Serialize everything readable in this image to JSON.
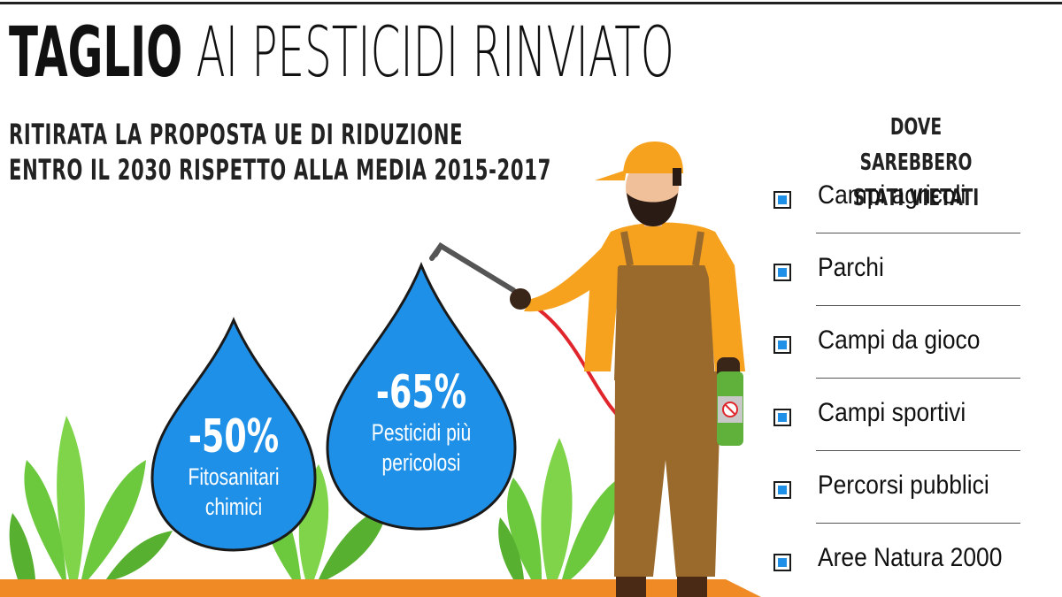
{
  "header": {
    "title_bold": "TAGLIO",
    "title_rest": "AI PESTICIDI RINVIATO",
    "subtitle_line1": "RITIRATA LA PROPOSTA UE DI RIDUZIONE",
    "subtitle_line2": "ENTRO IL 2030 RISPETTO ALLA MEDIA 2015-2017"
  },
  "drops": [
    {
      "value": "-50%",
      "label_line1": "Fitosanitari",
      "label_line2": "chimici"
    },
    {
      "value": "-65%",
      "label_line1": "Pesticidi più",
      "label_line2": "pericolosi"
    }
  ],
  "sidebar": {
    "heading_line1": "DOVE SAREBBERO",
    "heading_line2": "STATI VIETATI",
    "items": [
      "Campi agricoli",
      "Parchi",
      "Campi da gioco",
      "Campi sportivi",
      "Percorsi pubblici",
      "Aree Natura 2000"
    ]
  },
  "colors": {
    "drop_blue": "#1e90e8",
    "ground_orange": "#f08a24",
    "plant_green": "#6cc83c",
    "overall_brown": "#9a6a2c",
    "shirt_orange": "#f7a21e",
    "hose_red": "#e0262c"
  },
  "icons": [
    "worker-illustration",
    "water-drop",
    "plant",
    "sprayer-bottle",
    "checkbox-icon"
  ]
}
